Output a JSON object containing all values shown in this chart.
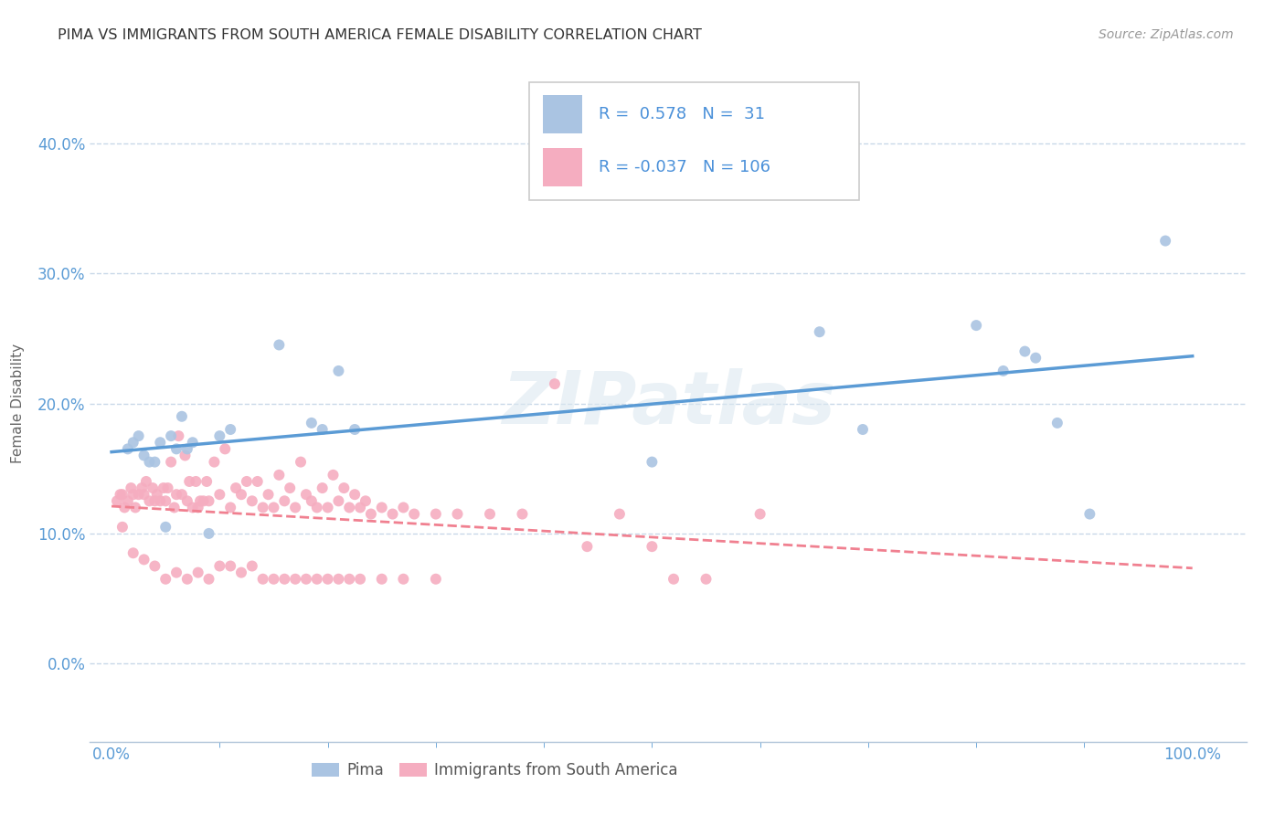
{
  "title": "PIMA VS IMMIGRANTS FROM SOUTH AMERICA FEMALE DISABILITY CORRELATION CHART",
  "source": "Source: ZipAtlas.com",
  "ylabel": "Female Disability",
  "xlim": [
    -0.02,
    1.05
  ],
  "ylim": [
    -0.06,
    0.46
  ],
  "yticks": [
    0.0,
    0.1,
    0.2,
    0.3,
    0.4
  ],
  "xticks_labeled": [
    0.0,
    1.0
  ],
  "xticks_minor": [
    0.1,
    0.2,
    0.3,
    0.4,
    0.5,
    0.6,
    0.7,
    0.8,
    0.9
  ],
  "blue_R": 0.578,
  "blue_N": 31,
  "pink_R": -0.037,
  "pink_N": 106,
  "blue_color": "#aac4e2",
  "pink_color": "#f5adc0",
  "blue_line_color": "#5b9bd5",
  "pink_line_color": "#f08090",
  "watermark": "ZIPatlas",
  "blue_scatter_x": [
    0.015,
    0.02,
    0.025,
    0.03,
    0.035,
    0.04,
    0.045,
    0.05,
    0.055,
    0.06,
    0.065,
    0.07,
    0.075,
    0.09,
    0.1,
    0.11,
    0.155,
    0.185,
    0.195,
    0.21,
    0.225,
    0.5,
    0.655,
    0.695,
    0.8,
    0.825,
    0.845,
    0.855,
    0.875,
    0.905,
    0.975
  ],
  "blue_scatter_y": [
    0.165,
    0.17,
    0.175,
    0.16,
    0.155,
    0.155,
    0.17,
    0.105,
    0.175,
    0.165,
    0.19,
    0.165,
    0.17,
    0.1,
    0.175,
    0.18,
    0.245,
    0.185,
    0.18,
    0.225,
    0.18,
    0.155,
    0.255,
    0.18,
    0.26,
    0.225,
    0.24,
    0.235,
    0.185,
    0.115,
    0.325
  ],
  "pink_scatter_x": [
    0.005,
    0.008,
    0.01,
    0.012,
    0.015,
    0.018,
    0.02,
    0.022,
    0.025,
    0.028,
    0.03,
    0.032,
    0.035,
    0.038,
    0.04,
    0.042,
    0.045,
    0.048,
    0.05,
    0.052,
    0.055,
    0.058,
    0.06,
    0.062,
    0.065,
    0.068,
    0.07,
    0.072,
    0.075,
    0.078,
    0.08,
    0.082,
    0.085,
    0.088,
    0.09,
    0.095,
    0.1,
    0.105,
    0.11,
    0.115,
    0.12,
    0.125,
    0.13,
    0.135,
    0.14,
    0.145,
    0.15,
    0.155,
    0.16,
    0.165,
    0.17,
    0.175,
    0.18,
    0.185,
    0.19,
    0.195,
    0.2,
    0.205,
    0.21,
    0.215,
    0.22,
    0.225,
    0.23,
    0.235,
    0.24,
    0.25,
    0.26,
    0.27,
    0.28,
    0.3,
    0.32,
    0.35,
    0.38,
    0.41,
    0.44,
    0.47,
    0.5,
    0.52,
    0.55,
    0.6,
    0.01,
    0.02,
    0.03,
    0.04,
    0.05,
    0.06,
    0.07,
    0.08,
    0.09,
    0.1,
    0.11,
    0.12,
    0.13,
    0.14,
    0.15,
    0.16,
    0.17,
    0.18,
    0.19,
    0.2,
    0.21,
    0.22,
    0.23,
    0.25,
    0.27,
    0.3
  ],
  "pink_scatter_y": [
    0.125,
    0.13,
    0.13,
    0.12,
    0.125,
    0.135,
    0.13,
    0.12,
    0.13,
    0.135,
    0.13,
    0.14,
    0.125,
    0.135,
    0.125,
    0.13,
    0.125,
    0.135,
    0.125,
    0.135,
    0.155,
    0.12,
    0.13,
    0.175,
    0.13,
    0.16,
    0.125,
    0.14,
    0.12,
    0.14,
    0.12,
    0.125,
    0.125,
    0.14,
    0.125,
    0.155,
    0.13,
    0.165,
    0.12,
    0.135,
    0.13,
    0.14,
    0.125,
    0.14,
    0.12,
    0.13,
    0.12,
    0.145,
    0.125,
    0.135,
    0.12,
    0.155,
    0.13,
    0.125,
    0.12,
    0.135,
    0.12,
    0.145,
    0.125,
    0.135,
    0.12,
    0.13,
    0.12,
    0.125,
    0.115,
    0.12,
    0.115,
    0.12,
    0.115,
    0.115,
    0.115,
    0.115,
    0.115,
    0.215,
    0.09,
    0.115,
    0.09,
    0.065,
    0.065,
    0.115,
    0.105,
    0.085,
    0.08,
    0.075,
    0.065,
    0.07,
    0.065,
    0.07,
    0.065,
    0.075,
    0.075,
    0.07,
    0.075,
    0.065,
    0.065,
    0.065,
    0.065,
    0.065,
    0.065,
    0.065,
    0.065,
    0.065,
    0.065,
    0.065,
    0.065,
    0.065
  ],
  "legend_label_blue": "Pima",
  "legend_label_pink": "Immigrants from South America"
}
